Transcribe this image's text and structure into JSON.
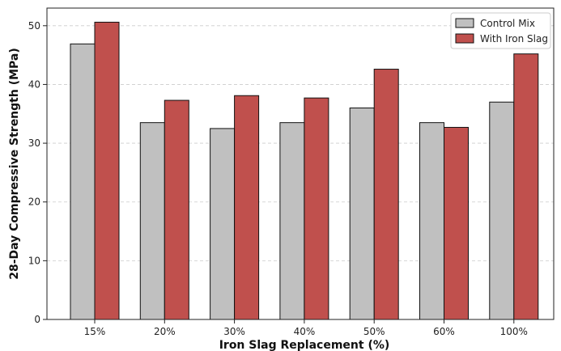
{
  "chart_data": {
    "type": "bar",
    "xlabel": "Iron Slag Replacement (%)",
    "ylabel": "28-Day Compressive Strength (MPa)",
    "categories": [
      "15%",
      "20%",
      "30%",
      "40%",
      "50%",
      "60%",
      "100%"
    ],
    "ylim": [
      0,
      53
    ],
    "yticks": [
      0,
      10,
      20,
      30,
      40,
      50
    ],
    "grid": "horizontal dashed",
    "legend_position": "top-right",
    "series": [
      {
        "name": "Control Mix",
        "color": "#c0c0c0",
        "values": [
          46.9,
          33.5,
          32.5,
          33.5,
          36.0,
          33.5,
          37.0
        ]
      },
      {
        "name": "With Iron Slag",
        "color": "#c0504d",
        "values": [
          50.6,
          37.3,
          38.1,
          37.7,
          42.6,
          32.7,
          45.2
        ]
      }
    ]
  }
}
